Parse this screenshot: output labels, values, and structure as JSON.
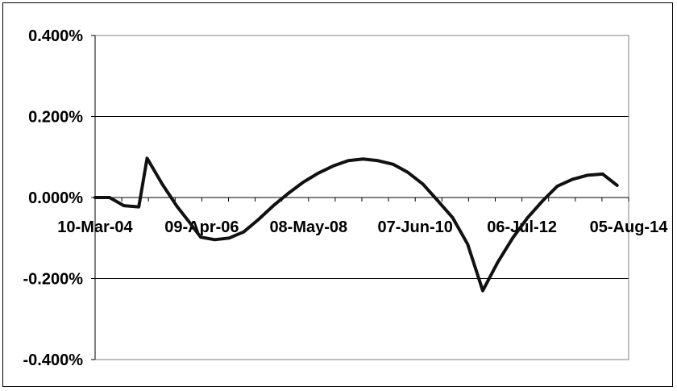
{
  "chart_data": {
    "type": "line",
    "title": "",
    "xlabel": "",
    "ylabel": "",
    "ylim": [
      -0.4,
      0.4
    ],
    "y_unit": "%",
    "y_ticks": [
      0.4,
      0.2,
      0.0,
      -0.2,
      -0.4
    ],
    "y_tick_labels": [
      "0.400%",
      "0.200%",
      "0.000%",
      "-0.200%",
      "-0.400%"
    ],
    "x_ticks": [
      "2004-03-10",
      "2006-04-09",
      "2008-05-08",
      "2010-06-07",
      "2012-07-06",
      "2014-08-05"
    ],
    "x_tick_labels": [
      "10-Mar-04",
      "09-Apr-06",
      "08-May-08",
      "07-Jun-10",
      "06-Jul-12",
      "05-Aug-14"
    ],
    "xlim": [
      "2004-03-10",
      "2014-08-05"
    ],
    "grid": "horizontal",
    "legend": "none",
    "line_color": "#111111",
    "series": [
      {
        "x": [
          "2004-03-10",
          "2004-06-21",
          "2004-10-01",
          "2005-01-15",
          "2005-03-15",
          "2005-07-01",
          "2005-10-15",
          "2006-01-15",
          "2006-04-01",
          "2006-07-10",
          "2006-10-20",
          "2007-02-01",
          "2007-05-15",
          "2007-09-01",
          "2007-12-15",
          "2008-04-01",
          "2008-07-15",
          "2008-11-01",
          "2009-02-15",
          "2009-06-01",
          "2009-09-15",
          "2010-01-01",
          "2010-04-15",
          "2010-08-01",
          "2010-11-15",
          "2011-03-01",
          "2011-06-15",
          "2011-10-01",
          "2012-01-15",
          "2012-05-01",
          "2012-08-15",
          "2012-12-01",
          "2013-03-15",
          "2013-07-01",
          "2013-10-15",
          "2014-02-01",
          "2014-05-15"
        ],
        "y": [
          0.0,
          0.0,
          -0.02,
          -0.023,
          0.097,
          0.033,
          -0.022,
          -0.063,
          -0.098,
          -0.104,
          -0.1,
          -0.085,
          -0.055,
          -0.02,
          0.01,
          0.038,
          0.06,
          0.078,
          0.091,
          0.095,
          0.091,
          0.082,
          0.062,
          0.033,
          -0.008,
          -0.05,
          -0.115,
          -0.23,
          -0.16,
          -0.1,
          -0.05,
          -0.008,
          0.028,
          0.045,
          0.055,
          0.058,
          0.03
        ]
      }
    ]
  }
}
